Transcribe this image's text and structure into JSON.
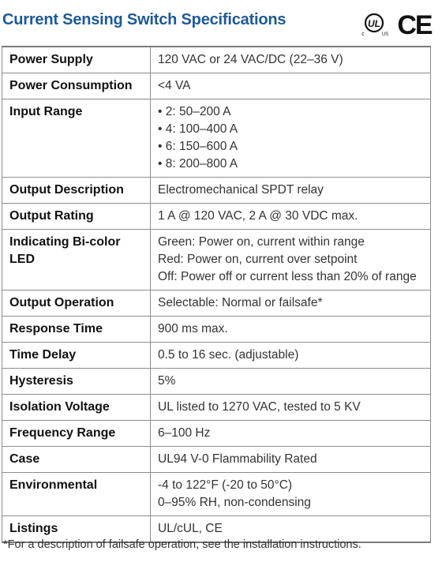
{
  "title": "Current Sensing Switch Specifications",
  "certifications": {
    "ul": {
      "icon": "ul-listed-icon",
      "letters": "UL",
      "left_mark": "c",
      "right_mark": "US"
    },
    "ce": {
      "icon": "ce-mark-icon",
      "letters": "CE"
    }
  },
  "specs": [
    {
      "label": "Power Supply",
      "lines": [
        "120 VAC or 24 VAC/DC (22–36 V)"
      ]
    },
    {
      "label": "Power Consumption",
      "lines": [
        "<4 VA"
      ]
    },
    {
      "label": "Input Range",
      "lines": [
        "• 2: 50–200 A",
        "• 4: 100–400 A",
        "• 6: 150–600 A",
        "• 8: 200–800 A"
      ]
    },
    {
      "label": "Output Description",
      "lines": [
        "Electromechanical SPDT relay"
      ]
    },
    {
      "label": "Output Rating",
      "lines": [
        "1 A @ 120 VAC, 2 A @ 30 VDC max."
      ]
    },
    {
      "label": "Indicating Bi-color LED",
      "lines": [
        "Green: Power on, current within range",
        "Red: Power on, current over setpoint",
        "Off: Power off or current less than 20% of range"
      ]
    },
    {
      "label": "Output Operation",
      "lines": [
        "Selectable: Normal or failsafe*"
      ]
    },
    {
      "label": "Response Time",
      "lines": [
        "900 ms max."
      ]
    },
    {
      "label": "Time Delay",
      "lines": [
        "0.5 to 16 sec. (adjustable)"
      ]
    },
    {
      "label": "Hysteresis",
      "lines": [
        "5%"
      ]
    },
    {
      "label": "Isolation Voltage",
      "lines": [
        "UL listed to 1270 VAC, tested to 5 KV"
      ]
    },
    {
      "label": "Frequency Range",
      "lines": [
        "6–100 Hz"
      ]
    },
    {
      "label": "Case",
      "lines": [
        "UL94 V-0 Flammability Rated"
      ]
    },
    {
      "label": "Environmental",
      "lines": [
        "-4 to 122°F (-20 to 50°C)",
        "0–95% RH, non-condensing"
      ]
    },
    {
      "label": "Listings",
      "lines": [
        "UL/cUL, CE"
      ]
    }
  ],
  "footnote": "*For a description of failsafe operation, see the installation instructions.",
  "colors": {
    "title": "#1f5a93",
    "border": "#8c8c8c",
    "text": "#333333"
  }
}
